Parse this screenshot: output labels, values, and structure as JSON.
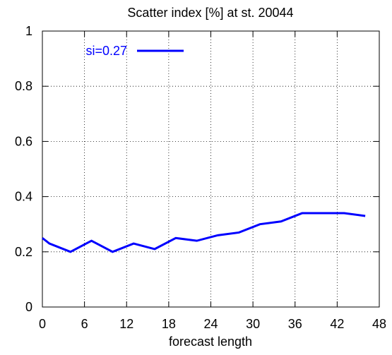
{
  "chart_data": {
    "type": "line",
    "title": "Scatter index [%] at st. 20044",
    "x_label": "forecast length",
    "x": [
      0,
      1,
      4,
      7,
      10,
      13,
      16,
      19,
      22,
      25,
      28,
      31,
      34,
      37,
      40,
      43,
      46
    ],
    "series": [
      {
        "name": "si=0.27",
        "color": "#0000ff",
        "values": [
          0.25,
          0.23,
          0.2,
          0.24,
          0.2,
          0.23,
          0.21,
          0.25,
          0.24,
          0.26,
          0.27,
          0.3,
          0.31,
          0.34,
          0.34,
          0.34,
          0.33
        ]
      }
    ],
    "xlim": [
      0,
      48
    ],
    "xticks": [
      0,
      6,
      12,
      18,
      24,
      30,
      36,
      42,
      48
    ],
    "ylim": [
      0,
      1
    ],
    "yticks": [
      0,
      0.2,
      0.4,
      0.6,
      0.8,
      1
    ],
    "grid": true,
    "legend": "top-left"
  }
}
